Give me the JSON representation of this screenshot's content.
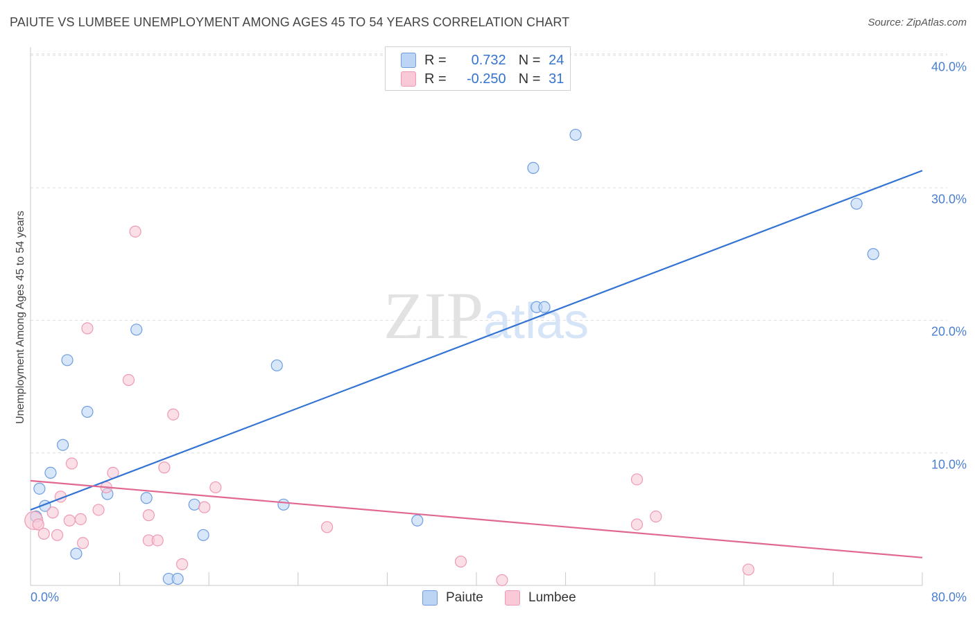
{
  "title": "PAIUTE VS LUMBEE UNEMPLOYMENT AMONG AGES 45 TO 54 YEARS CORRELATION CHART",
  "source": "Source: ZipAtlas.com",
  "watermark": {
    "zip": "ZIP",
    "atlas": "atlas"
  },
  "colors": {
    "paiute_fill": "#bcd5f5",
    "paiute_stroke": "#6d9de0",
    "paiute_line": "#3273d3",
    "lumbee_fill": "#f9c9d7",
    "lumbee_stroke": "#ee99b3",
    "lumbee_line": "#e06891",
    "grid": "#dddddd",
    "tick_text": "#4a7fd0"
  },
  "legend": {
    "rows": [
      {
        "r_label": "R =",
        "r_value": "0.732",
        "n_label": "N =",
        "n_value": "24"
      },
      {
        "r_label": "R =",
        "r_value": "-0.250",
        "n_label": "N =",
        "n_value": "31"
      }
    ]
  },
  "chart_data": {
    "type": "scatter",
    "title": "PAIUTE VS LUMBEE UNEMPLOYMENT AMONG AGES 45 TO 54 YEARS CORRELATION CHART",
    "xlabel": "",
    "ylabel": "Unemployment Among Ages 45 to 54 years",
    "xlim": [
      0,
      80
    ],
    "ylim": [
      0,
      40
    ],
    "x_tick_labels": [
      "0.0%",
      "80.0%"
    ],
    "y_ticks": [
      10,
      20,
      30,
      40
    ],
    "y_tick_labels": [
      "10.0%",
      "20.0%",
      "30.0%",
      "40.0%"
    ],
    "grid": true,
    "legend_position": "bottom-center",
    "series": [
      {
        "name": "Paiute",
        "r": 0.732,
        "n": 24,
        "trend": {
          "x": [
            0,
            80
          ],
          "y": [
            5.7,
            31.3
          ]
        },
        "points": [
          {
            "x": 0.5,
            "y": 5.2
          },
          {
            "x": 0.8,
            "y": 7.3
          },
          {
            "x": 1.3,
            "y": 6.0
          },
          {
            "x": 1.8,
            "y": 8.5
          },
          {
            "x": 2.9,
            "y": 10.6
          },
          {
            "x": 3.3,
            "y": 17.0
          },
          {
            "x": 4.1,
            "y": 2.4
          },
          {
            "x": 5.1,
            "y": 13.1
          },
          {
            "x": 6.9,
            "y": 6.9
          },
          {
            "x": 9.5,
            "y": 19.3
          },
          {
            "x": 10.4,
            "y": 6.6
          },
          {
            "x": 12.4,
            "y": 0.5
          },
          {
            "x": 13.2,
            "y": 0.5
          },
          {
            "x": 14.7,
            "y": 6.1
          },
          {
            "x": 15.5,
            "y": 3.8
          },
          {
            "x": 22.1,
            "y": 16.6
          },
          {
            "x": 22.7,
            "y": 6.1
          },
          {
            "x": 34.7,
            "y": 4.9
          },
          {
            "x": 45.1,
            "y": 31.5
          },
          {
            "x": 45.4,
            "y": 21.0
          },
          {
            "x": 46.1,
            "y": 21.0
          },
          {
            "x": 48.9,
            "y": 34.0
          },
          {
            "x": 74.1,
            "y": 28.8
          },
          {
            "x": 75.6,
            "y": 25.0
          }
        ]
      },
      {
        "name": "Lumbee",
        "r": -0.25,
        "n": 31,
        "trend": {
          "x": [
            0,
            80
          ],
          "y": [
            7.9,
            2.1
          ]
        },
        "points": [
          {
            "x": 0.3,
            "y": 4.9
          },
          {
            "x": 0.7,
            "y": 4.6
          },
          {
            "x": 1.2,
            "y": 3.9
          },
          {
            "x": 2.0,
            "y": 5.5
          },
          {
            "x": 2.4,
            "y": 3.8
          },
          {
            "x": 2.7,
            "y": 6.7
          },
          {
            "x": 3.5,
            "y": 4.9
          },
          {
            "x": 3.7,
            "y": 9.2
          },
          {
            "x": 4.5,
            "y": 5.0
          },
          {
            "x": 4.7,
            "y": 3.2
          },
          {
            "x": 5.1,
            "y": 19.4
          },
          {
            "x": 6.1,
            "y": 5.7
          },
          {
            "x": 6.8,
            "y": 7.4
          },
          {
            "x": 7.4,
            "y": 8.5
          },
          {
            "x": 8.8,
            "y": 15.5
          },
          {
            "x": 9.4,
            "y": 26.7
          },
          {
            "x": 10.6,
            "y": 3.4
          },
          {
            "x": 10.6,
            "y": 5.3
          },
          {
            "x": 11.4,
            "y": 3.4
          },
          {
            "x": 12.0,
            "y": 8.9
          },
          {
            "x": 12.8,
            "y": 12.9
          },
          {
            "x": 13.6,
            "y": 1.6
          },
          {
            "x": 15.6,
            "y": 5.9
          },
          {
            "x": 16.6,
            "y": 7.4
          },
          {
            "x": 26.6,
            "y": 4.4
          },
          {
            "x": 38.6,
            "y": 1.8
          },
          {
            "x": 42.3,
            "y": 0.4
          },
          {
            "x": 54.4,
            "y": 8.0
          },
          {
            "x": 54.4,
            "y": 4.6
          },
          {
            "x": 56.1,
            "y": 5.2
          },
          {
            "x": 64.4,
            "y": 1.2
          }
        ]
      }
    ]
  }
}
